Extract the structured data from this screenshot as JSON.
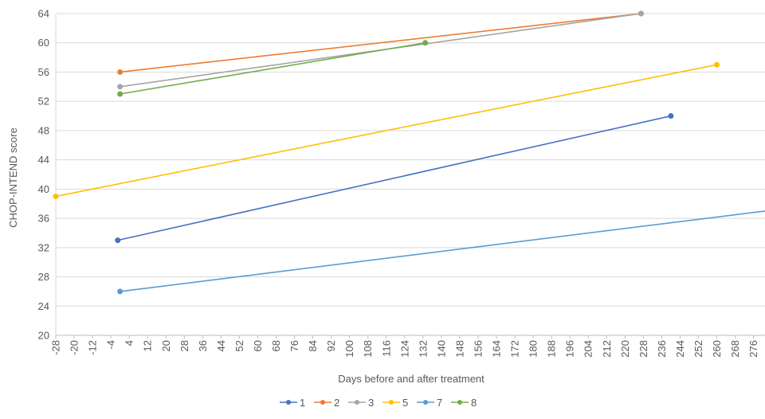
{
  "chart_data": {
    "type": "line",
    "title": "",
    "xlabel": "Days before and after treatment",
    "ylabel": "CHOP-INTEND score",
    "xlim": [
      -28,
      281
    ],
    "ylim": [
      20,
      64
    ],
    "x_ticks": [
      -28,
      -20,
      -12,
      -4,
      4,
      12,
      20,
      28,
      36,
      44,
      52,
      60,
      68,
      76,
      84,
      92,
      100,
      108,
      116,
      124,
      132,
      140,
      148,
      156,
      164,
      172,
      180,
      188,
      196,
      204,
      212,
      220,
      228,
      236,
      244,
      252,
      260,
      268,
      276
    ],
    "y_ticks": [
      20,
      24,
      28,
      32,
      36,
      40,
      44,
      48,
      52,
      56,
      60,
      64
    ],
    "grid": "horizontal",
    "legend_position": "bottom",
    "series": [
      {
        "name": "1",
        "color": "#4472C4",
        "x": [
          -1,
          240
        ],
        "y": [
          33,
          50
        ]
      },
      {
        "name": "2",
        "color": "#ED7D31",
        "x": [
          0,
          227
        ],
        "y": [
          56,
          64
        ]
      },
      {
        "name": "3",
        "color": "#A5A5A5",
        "x": [
          0,
          227
        ],
        "y": [
          54,
          64
        ]
      },
      {
        "name": "5",
        "color": "#FFC000",
        "x": [
          -28,
          260
        ],
        "y": [
          39,
          57
        ]
      },
      {
        "name": "7",
        "color": "#5B9BD5",
        "x": [
          0,
          281
        ],
        "y": [
          26,
          37
        ],
        "end_marker": false
      },
      {
        "name": "8",
        "color": "#70AD47",
        "x": [
          0,
          133
        ],
        "y": [
          53,
          60
        ]
      }
    ]
  }
}
